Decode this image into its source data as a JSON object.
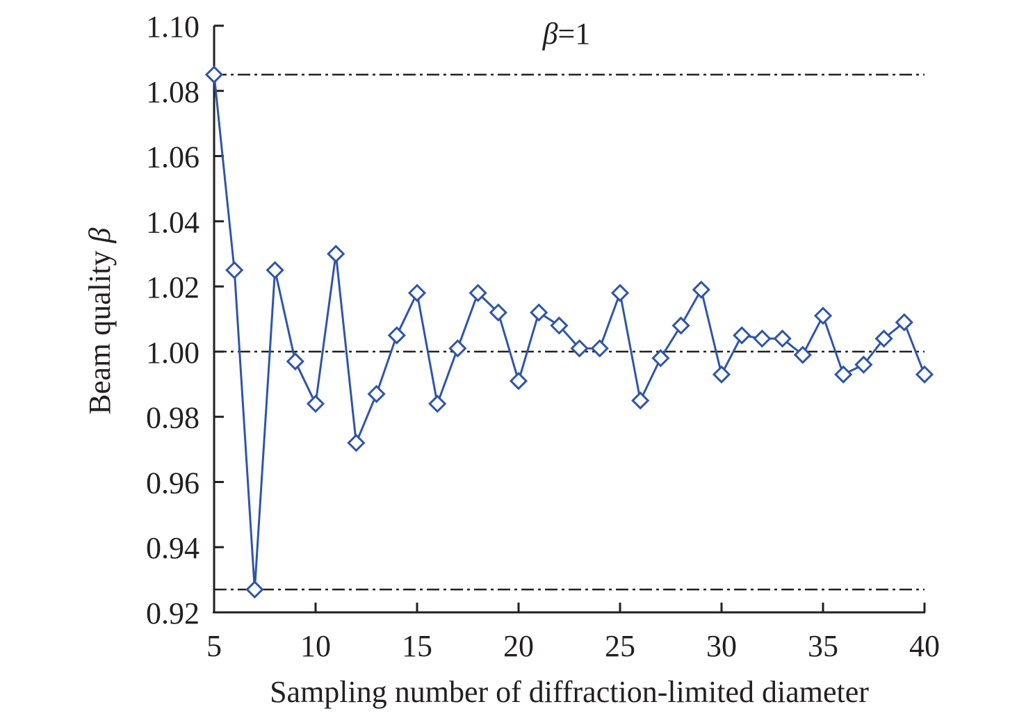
{
  "chart_data": {
    "type": "line",
    "title": "β=1",
    "title_symbol": "β",
    "title_rest": "=1",
    "xlabel": "Sampling number of diffraction-limited diameter",
    "ylabel": "Beam quality",
    "ylabel_symbol": "β",
    "xlim": [
      5,
      40
    ],
    "ylim": [
      0.92,
      1.1
    ],
    "xticks": [
      5,
      10,
      15,
      20,
      25,
      30,
      35,
      40
    ],
    "yticks": [
      "0.92",
      "0.94",
      "0.96",
      "0.98",
      "1.00",
      "1.02",
      "1.04",
      "1.06",
      "1.08",
      "1.10"
    ],
    "grid": false,
    "series": [
      {
        "name": "β",
        "color": "#2f55a8",
        "marker": "diamond-open",
        "x": [
          5,
          6,
          7,
          8,
          9,
          10,
          11,
          12,
          13,
          14,
          15,
          16,
          17,
          18,
          19,
          20,
          21,
          22,
          23,
          24,
          25,
          26,
          27,
          28,
          29,
          30,
          31,
          32,
          33,
          34,
          35,
          36,
          37,
          38,
          39,
          40
        ],
        "y": [
          1.085,
          1.025,
          0.927,
          1.025,
          0.997,
          0.984,
          1.03,
          0.972,
          0.987,
          1.005,
          1.018,
          0.984,
          1.001,
          1.018,
          1.012,
          0.991,
          1.012,
          1.008,
          1.001,
          1.001,
          1.018,
          0.985,
          0.998,
          1.008,
          1.019,
          0.993,
          1.005,
          1.004,
          1.004,
          0.999,
          1.011,
          0.993,
          0.996,
          1.004,
          1.009,
          0.993
        ]
      }
    ],
    "reference_lines": [
      {
        "y": 1.085,
        "style": "dash-dot",
        "color": "#231f20"
      },
      {
        "y": 1.0,
        "style": "dash-dot",
        "color": "#231f20"
      },
      {
        "y": 0.927,
        "style": "dash-dot",
        "color": "#231f20"
      }
    ]
  }
}
